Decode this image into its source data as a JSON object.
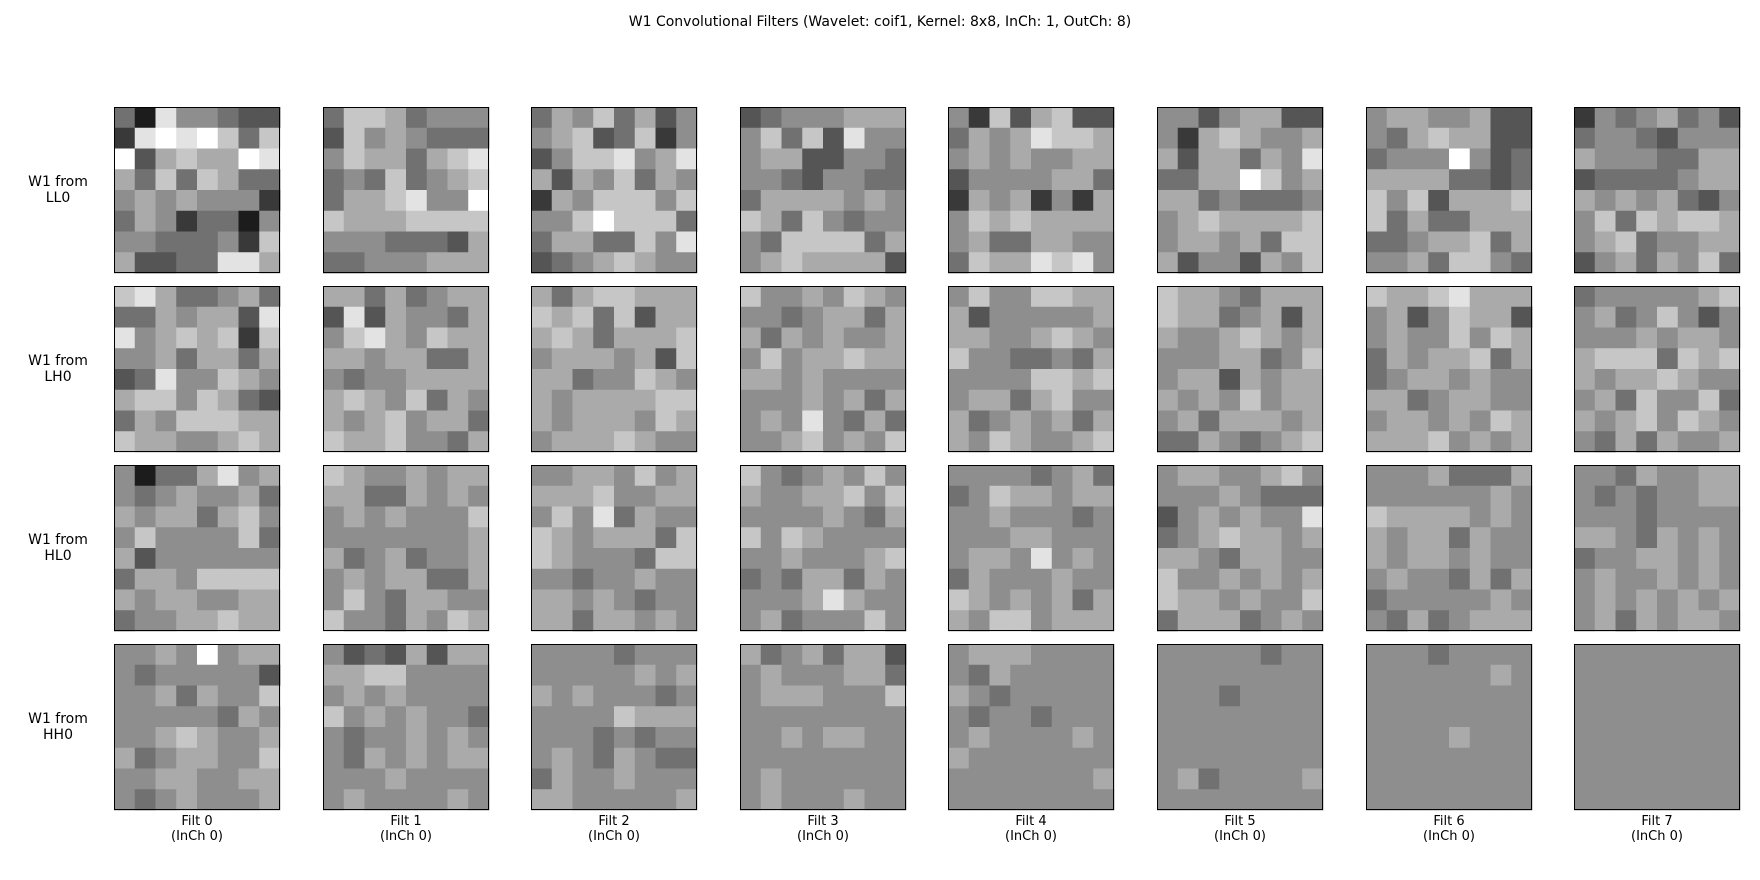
{
  "chart_data": {
    "type": "heatmap",
    "title": "W1 Convolutional Filters (Wavelet: coif1, Kernel: 8x8, InCh: 1, OutCh: 8)",
    "colormap": "gray",
    "value_range": [
      0,
      9
    ],
    "kernel_size": [
      8,
      8
    ],
    "grid": false,
    "row_labels": [
      [
        "W1 from",
        "LL0"
      ],
      [
        "W1 from",
        "LH0"
      ],
      [
        "W1 from",
        "HL0"
      ],
      [
        "W1 from",
        "HH0"
      ]
    ],
    "column_labels": [
      [
        "Filt 0",
        "(InCh 0)"
      ],
      [
        "Filt 1",
        "(InCh 0)"
      ],
      [
        "Filt 2",
        "(InCh 0)"
      ],
      [
        "Filt 3",
        "(InCh 0)"
      ],
      [
        "Filt 4",
        "(InCh 0)"
      ],
      [
        "Filt 5",
        "(InCh 0)"
      ],
      [
        "Filt 6",
        "(InCh 0)"
      ],
      [
        "Filt 7",
        "(InCh 0)"
      ]
    ],
    "subplots": [
      [
        [
          "41855433",
          "28989747",
          "93676698",
          "64747644",
          "56565552",
          "46524415",
          "55444527",
          "63344886"
        ],
        [
          "47764555",
          "37565444",
          "57664678",
          "45474567",
          "46678559",
          "76667777",
          "55544436",
          "44555666"
        ],
        [
          "46574635",
          "56734725",
          "35778568",
          "63657465",
          "26577757",
          "55797774",
          "46644758",
          "34567655"
        ],
        [
          "34555666",
          "57473855",
          "56633554",
          "55435544",
          "46666565",
          "76475455",
          "54777746",
          "56766663"
        ],
        [
          "52736733",
          "46568776",
          "56565566",
          "35555664",
          "26562526",
          "57676666",
          "56446655",
          "47668785"
        ],
        [
          "55356633",
          "52676556",
          "63664658",
          "44669756",
          "66454445",
          "56766667",
          "56656477",
          "63553657"
        ],
        [
          "56655633",
          "54676633",
          "45559534",
          "66664434",
          "75736667",
          "74644666",
          "44566746",
          "55647754"
        ],
        [
          "25456453",
          "45543555",
          "65554466",
          "34444566",
          "65656435",
          "57476776",
          "56745566",
          "35646574"
        ]
      ],
      [
        [
          "78644564",
          "44656638",
          "85676727",
          "55646646",
          "34855765",
          "67757643",
          "46577766",
          "76655676"
        ],
        [
          "66464566",
          "38365546",
          "57865766",
          "66566446",
          "54556666",
          "67657465",
          "65675664",
          "76675546"
        ],
        [
          "64677666",
          "76747366",
          "67646667",
          "56665637",
          "66455765",
          "65666677",
          "65666576",
          "56667655"
        ],
        [
          "75565765",
          "55456646",
          "64656556",
          "57566766",
          "66565555",
          "55565646",
          "56585464",
          "55675657"
        ],
        [
          "57557766",
          "63555556",
          "66556765",
          "75544546",
          "55557767",
          "56646755",
          "64565646",
          "65765567"
        ],
        [
          "76654666",
          "76645636",
          "65567656",
          "55566457",
          "56636566",
          "65657566",
          "56466656",
          "44654567"
        ],
        [
          "76678666",
          "56357663",
          "56557576",
          "46566746",
          "45665655",
          "66456655",
          "56656576",
          "66675656"
        ],
        [
          "45555567",
          "56457535",
          "55565665",
          "67774767",
          "65667655",
          "56475574",
          "65675765",
          "54646556"
        ]
      ],
      [
        [
          "51446856",
          "54565564",
          "65664675",
          "57555574",
          "63555555",
          "46657777",
          "65665566",
          "45566766"
        ],
        [
          "76556566",
          "66446565",
          "56565557",
          "55555556",
          "64564556",
          "56566446",
          "57546655",
          "75546576"
        ],
        [
          "55665756",
          "66675566",
          "57584655",
          "76566647",
          "76555477",
          "55455655",
          "66565455",
          "66466565"
        ],
        [
          "75456575",
          "65566757",
          "55556546",
          "75765555",
          "55655567",
          "45466465",
          "55568655",
          "56455575"
        ],
        [
          "55554564",
          "45766566",
          "55655545",
          "55566555",
          "56658565",
          "46555655",
          "76565646",
          "65775666"
        ],
        [
          "56655675",
          "55565444",
          "35656558",
          "45676656",
          "66546655",
          "75565656",
          "76656557",
          "46664565"
        ],
        [
          "55564446",
          "55555565",
          "76666565",
          "65664655",
          "65665655",
          "56554646",
          "45555565",
          "54645666"
        ],
        [
          "55465566",
          "54545566",
          "55545555",
          "66546565",
          "45566565",
          "56556565",
          "56565656",
          "56465665"
        ]
      ],
      [
        [
          "55659566",
          "54555553",
          "55646557",
          "55555465",
          "55676556",
          "64566557",
          "55665566",
          "54565556"
        ],
        [
          "53436366",
          "66775555",
          "56565555",
          "75656554",
          "54556565",
          "54656566",
          "55565555",
          "56555565"
        ],
        [
          "55554555",
          "55555656",
          "65655545",
          "55557666",
          "55545455",
          "56546544",
          "46556555",
          "66555556"
        ],
        [
          "64564663",
          "56555664",
          "56665557",
          "55555555",
          "55656655",
          "55555555",
          "56555555",
          "56555655"
        ],
        [
          "56665555",
          "54655555",
          "65455555",
          "54554555",
          "56555565",
          "65555555",
          "55555556",
          "55555555"
        ],
        [
          "55555455",
          "55555555",
          "55545555",
          "55555555",
          "55555555",
          "55555555",
          "56455556",
          "55555555"
        ],
        [
          "55545555",
          "55555565",
          "55555555",
          "55555555",
          "55556555",
          "55555555",
          "55555555",
          "55555555"
        ],
        [
          "55555555",
          "55555555",
          "55555555",
          "55555555",
          "55555555",
          "55555555",
          "55555555",
          "55555555"
        ]
      ]
    ]
  }
}
